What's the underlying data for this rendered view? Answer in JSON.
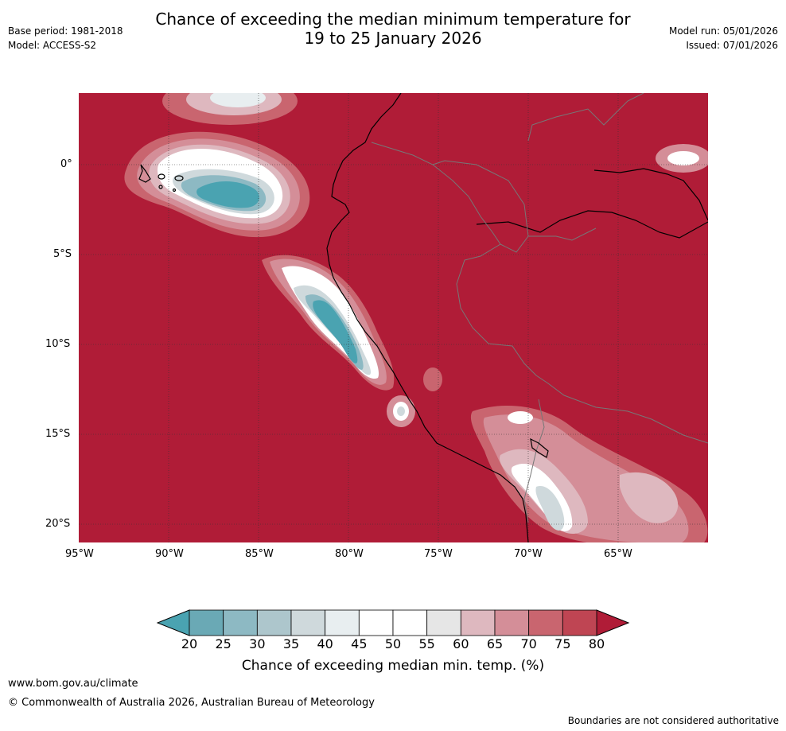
{
  "header": {
    "base_period": "Base period: 1981-2018",
    "model": "Model: ACCESS-S2",
    "title_line1": "Chance of exceeding the median minimum temperature for",
    "title_line2": "19 to 25 January 2026",
    "model_run": "Model run: 05/01/2026",
    "issued": "Issued: 07/01/2026"
  },
  "map": {
    "lat_labels": [
      "0°",
      "5°S",
      "10°S",
      "15°S",
      "20°S"
    ],
    "lon_labels": [
      "95°W",
      "90°W",
      "85°W",
      "80°W",
      "75°W",
      "70°W",
      "65°W"
    ],
    "dominant_color": "#b01c37"
  },
  "colorbar": {
    "ticks": [
      "20",
      "25",
      "30",
      "35",
      "40",
      "45",
      "50",
      "55",
      "60",
      "65",
      "70",
      "75",
      "80"
    ],
    "colors": [
      "#6aa9b5",
      "#8db9c3",
      "#adc6cc",
      "#cfd9dc",
      "#e8eef0",
      "#ffffff",
      "#ffffff",
      "#e6e6e6",
      "#deb8bf",
      "#d48e98",
      "#c9656f",
      "#bf4553"
    ],
    "low_extend_color": "#4aa3b1",
    "high_extend_color": "#b01c37",
    "title": "Chance of exceeding median min. temp. (%)"
  },
  "footer": {
    "url": "www.bom.gov.au/climate",
    "copyright": "© Commonwealth of Australia 2026, Australian Bureau of Meteorology",
    "disclaimer": "Boundaries are not considered authoritative"
  }
}
